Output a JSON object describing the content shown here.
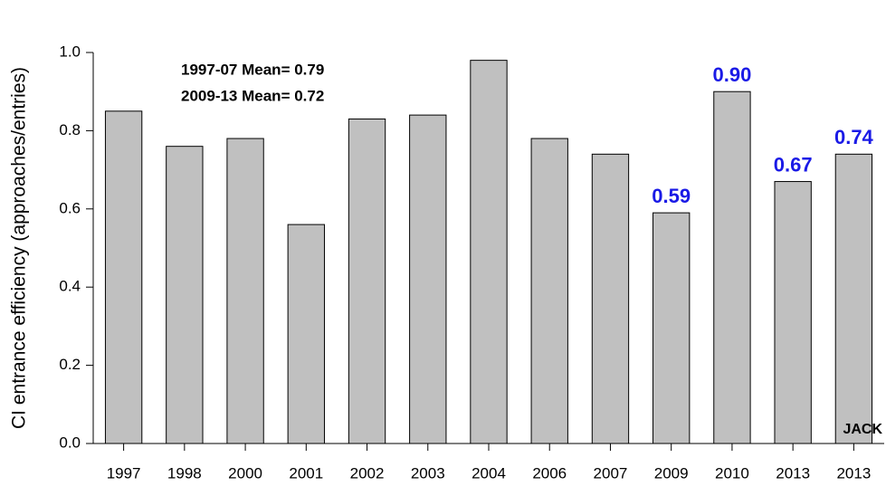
{
  "chart_data": {
    "type": "bar",
    "y_label": "CI entrance efficiency (approaches/entries)",
    "categories": [
      "1997",
      "1998",
      "2000",
      "2001",
      "2002",
      "2003",
      "2004",
      "2006",
      "2007",
      "2009",
      "2010",
      "2013",
      "2013"
    ],
    "values": [
      0.85,
      0.76,
      0.78,
      0.56,
      0.83,
      0.84,
      0.98,
      0.78,
      0.74,
      0.59,
      0.9,
      0.67,
      0.74
    ],
    "value_labels": [
      null,
      null,
      null,
      null,
      null,
      null,
      null,
      null,
      null,
      "0.59",
      "0.90",
      "0.67",
      "0.74"
    ],
    "color": "#c0c0c0",
    "label_color": "#1a1ae6",
    "ylim": [
      0,
      1.0
    ],
    "yticks": [
      {
        "value": 0,
        "label": "0.0"
      },
      0.2,
      0.4,
      0.6,
      0.8,
      {
        "value": 1.0,
        "label": "1.0"
      }
    ],
    "annotations": [
      "1997-07 Mean= 0.79",
      "2009-13 Mean= 0.72",
      "JACK"
    ]
  }
}
